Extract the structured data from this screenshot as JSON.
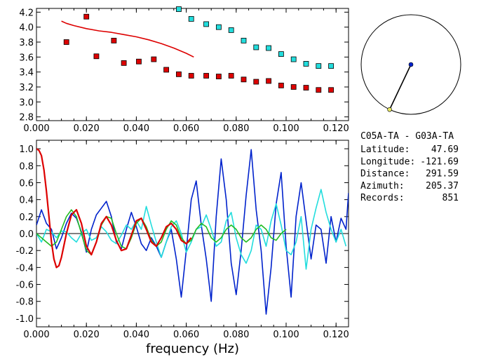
{
  "station_info": {
    "pair": "C05A-TA  - G03A-TA",
    "rows": [
      {
        "label": "Latitude:",
        "value": "47.69"
      },
      {
        "label": "Longitude:",
        "value": "-121.69"
      },
      {
        "label": "Distance:",
        "value": "291.59"
      },
      {
        "label": "Azimuth:",
        "value": "205.37"
      },
      {
        "label": "Records:",
        "value": "851"
      }
    ]
  },
  "colors": {
    "red": "#dd0000",
    "cyan": "#22dddd",
    "blue": "#0022cc",
    "green": "#22bb22",
    "axis": "#000000"
  },
  "chart_data": [
    {
      "type": "scatter",
      "title": "",
      "xlabel": "",
      "ylabel": "",
      "xlim": [
        0.0,
        0.125
      ],
      "ylim": [
        2.75,
        4.25
      ],
      "xticks": [
        "0.000",
        "0.020",
        "0.040",
        "0.060",
        "0.080",
        "0.100",
        "0.120"
      ],
      "yticks": [
        "2.8",
        "3.0",
        "3.2",
        "3.4",
        "3.6",
        "3.8",
        "4.0",
        "4.2"
      ],
      "series": [
        {
          "marker": "square",
          "color": "red",
          "x": [
            0.012,
            0.02,
            0.024,
            0.031,
            0.035,
            0.041,
            0.047,
            0.052,
            0.057,
            0.062,
            0.068,
            0.073,
            0.078,
            0.083,
            0.088,
            0.093,
            0.098,
            0.103,
            0.108,
            0.113,
            0.118
          ],
          "y": [
            3.8,
            4.14,
            3.61,
            3.82,
            3.52,
            3.54,
            3.57,
            3.43,
            3.37,
            3.35,
            3.35,
            3.34,
            3.35,
            3.3,
            3.27,
            3.28,
            3.22,
            3.2,
            3.19,
            3.16,
            3.16
          ]
        },
        {
          "marker": "square",
          "color": "cyan",
          "x": [
            0.057,
            0.062,
            0.068,
            0.073,
            0.078,
            0.083,
            0.088,
            0.093,
            0.098,
            0.103,
            0.108,
            0.113,
            0.118
          ],
          "y": [
            4.24,
            4.11,
            4.04,
            4.0,
            3.96,
            3.82,
            3.73,
            3.72,
            3.64,
            3.57,
            3.51,
            3.48,
            3.48
          ]
        },
        {
          "marker": "line",
          "color": "red",
          "x": [
            0.01,
            0.012,
            0.015,
            0.02,
            0.025,
            0.03,
            0.035,
            0.04,
            0.045,
            0.05,
            0.055,
            0.06,
            0.063
          ],
          "y": [
            4.08,
            4.05,
            4.02,
            3.98,
            3.95,
            3.93,
            3.9,
            3.87,
            3.83,
            3.78,
            3.72,
            3.65,
            3.6
          ]
        }
      ]
    },
    {
      "type": "line",
      "title": "",
      "xlabel": "frequency (Hz)",
      "ylabel": "",
      "xlim": [
        0.0,
        0.125
      ],
      "ylim": [
        -1.1,
        1.1
      ],
      "xticks": [
        "0.000",
        "0.020",
        "0.040",
        "0.060",
        "0.080",
        "0.100",
        "0.120"
      ],
      "yticks": [
        "-1.0",
        "-0.8",
        "-0.6",
        "-0.4",
        "-0.2",
        "0.0",
        "0.2",
        "0.4",
        "0.6",
        "0.8",
        "1.0"
      ],
      "series": [
        {
          "color": "blue",
          "x": [
            0.0,
            0.002,
            0.004,
            0.006,
            0.008,
            0.01,
            0.012,
            0.014,
            0.016,
            0.018,
            0.02,
            0.022,
            0.024,
            0.026,
            0.028,
            0.03,
            0.032,
            0.034,
            0.036,
            0.038,
            0.04,
            0.042,
            0.044,
            0.046,
            0.048,
            0.05,
            0.052,
            0.054,
            0.056,
            0.058,
            0.06,
            0.062,
            0.064,
            0.066,
            0.068,
            0.07,
            0.072,
            0.074,
            0.076,
            0.078,
            0.08,
            0.082,
            0.084,
            0.086,
            0.088,
            0.09,
            0.092,
            0.094,
            0.096,
            0.098,
            0.1,
            0.102,
            0.104,
            0.106,
            0.108,
            0.11,
            0.112,
            0.114,
            0.116,
            0.118,
            0.12,
            0.122,
            0.124,
            0.125
          ],
          "y": [
            0.1,
            0.28,
            0.12,
            0.05,
            -0.18,
            -0.05,
            0.12,
            0.24,
            0.18,
            0.02,
            -0.22,
            0.05,
            0.22,
            0.3,
            0.38,
            0.2,
            -0.1,
            -0.18,
            0.05,
            0.25,
            0.08,
            -0.12,
            -0.2,
            -0.05,
            -0.15,
            -0.28,
            -0.1,
            0.05,
            -0.3,
            -0.75,
            -0.2,
            0.4,
            0.62,
            0.1,
            -0.3,
            -0.8,
            0.2,
            0.88,
            0.4,
            -0.35,
            -0.72,
            -0.2,
            0.45,
            0.99,
            0.28,
            -0.2,
            -0.95,
            -0.4,
            0.35,
            0.72,
            -0.15,
            -0.75,
            0.2,
            0.6,
            0.15,
            -0.3,
            0.1,
            0.05,
            -0.35,
            0.2,
            -0.1,
            0.18,
            0.05,
            0.48
          ]
        },
        {
          "color": "cyan",
          "x": [
            0.0,
            0.002,
            0.004,
            0.006,
            0.008,
            0.01,
            0.012,
            0.014,
            0.016,
            0.018,
            0.02,
            0.022,
            0.024,
            0.026,
            0.028,
            0.03,
            0.032,
            0.034,
            0.036,
            0.038,
            0.04,
            0.042,
            0.044,
            0.046,
            0.048,
            0.05,
            0.052,
            0.054,
            0.056,
            0.058,
            0.06,
            0.062,
            0.064,
            0.066,
            0.068,
            0.07,
            0.072,
            0.074,
            0.076,
            0.078,
            0.08,
            0.082,
            0.084,
            0.086,
            0.088,
            0.09,
            0.092,
            0.094,
            0.096,
            0.098,
            0.1,
            0.102,
            0.104,
            0.106,
            0.108,
            0.11,
            0.112,
            0.114,
            0.116,
            0.118,
            0.12,
            0.122,
            0.124
          ],
          "y": [
            0.0,
            -0.1,
            0.05,
            0.02,
            -0.05,
            0.03,
            0.02,
            -0.05,
            -0.1,
            0.0,
            0.05,
            -0.08,
            -0.05,
            0.08,
            0.02,
            -0.08,
            -0.12,
            -0.02,
            0.1,
            0.05,
            0.15,
            0.05,
            0.32,
            0.1,
            -0.1,
            -0.28,
            -0.1,
            0.08,
            0.15,
            0.0,
            -0.22,
            -0.1,
            0.05,
            0.08,
            0.22,
            0.05,
            -0.15,
            -0.1,
            0.15,
            0.25,
            -0.05,
            -0.25,
            -0.35,
            -0.2,
            0.1,
            0.05,
            -0.15,
            0.15,
            0.35,
            0.1,
            -0.2,
            -0.25,
            -0.1,
            0.2,
            -0.42,
            0.05,
            0.3,
            0.52,
            0.25,
            0.05,
            -0.1,
            0.05,
            -0.15
          ]
        },
        {
          "color": "green",
          "x": [
            0.0,
            0.002,
            0.004,
            0.006,
            0.008,
            0.01,
            0.012,
            0.014,
            0.016,
            0.018,
            0.02,
            0.022,
            0.024,
            0.026,
            0.028,
            0.03,
            0.032,
            0.034,
            0.036,
            0.038,
            0.04,
            0.042,
            0.044,
            0.046,
            0.048,
            0.05,
            0.052,
            0.054,
            0.056,
            0.058,
            0.06,
            0.062,
            0.064,
            0.066,
            0.068,
            0.07,
            0.072,
            0.074,
            0.076,
            0.078,
            0.08,
            0.082,
            0.084,
            0.086,
            0.088,
            0.09,
            0.092,
            0.094,
            0.096,
            0.098,
            0.1
          ],
          "y": [
            0.0,
            -0.05,
            -0.1,
            -0.15,
            -0.1,
            0.05,
            0.2,
            0.28,
            0.2,
            0.0,
            -0.2,
            -0.25,
            -0.1,
            0.1,
            0.2,
            0.18,
            0.0,
            -0.15,
            -0.18,
            -0.05,
            0.12,
            0.18,
            0.08,
            -0.08,
            -0.15,
            -0.1,
            0.05,
            0.15,
            0.1,
            -0.05,
            -0.12,
            -0.08,
            0.05,
            0.12,
            0.08,
            -0.05,
            -0.1,
            -0.05,
            0.05,
            0.1,
            0.05,
            -0.05,
            -0.1,
            -0.05,
            0.05,
            0.1,
            0.05,
            -0.05,
            -0.08,
            0.0,
            0.05
          ]
        },
        {
          "color": "red",
          "x": [
            0.0,
            0.001,
            0.002,
            0.003,
            0.004,
            0.005,
            0.006,
            0.007,
            0.008,
            0.009,
            0.01,
            0.012,
            0.014,
            0.016,
            0.018,
            0.02,
            0.022,
            0.024,
            0.026,
            0.028,
            0.03,
            0.032,
            0.034,
            0.036,
            0.038,
            0.04,
            0.042,
            0.044,
            0.046,
            0.048,
            0.05,
            0.052,
            0.054,
            0.056,
            0.058,
            0.06,
            0.062
          ],
          "y": [
            1.0,
            0.98,
            0.92,
            0.75,
            0.5,
            0.2,
            -0.1,
            -0.3,
            -0.4,
            -0.38,
            -0.28,
            0.0,
            0.22,
            0.28,
            0.12,
            -0.15,
            -0.25,
            -0.1,
            0.12,
            0.2,
            0.1,
            -0.08,
            -0.2,
            -0.18,
            -0.02,
            0.15,
            0.18,
            0.05,
            -0.1,
            -0.15,
            -0.05,
            0.08,
            0.12,
            0.05,
            -0.08,
            -0.12,
            -0.05
          ]
        }
      ]
    }
  ],
  "map_inset": {
    "description_free": true,
    "azimuth_deg": 205.37,
    "endpoint_color": "yellow",
    "center_color": "blue"
  }
}
